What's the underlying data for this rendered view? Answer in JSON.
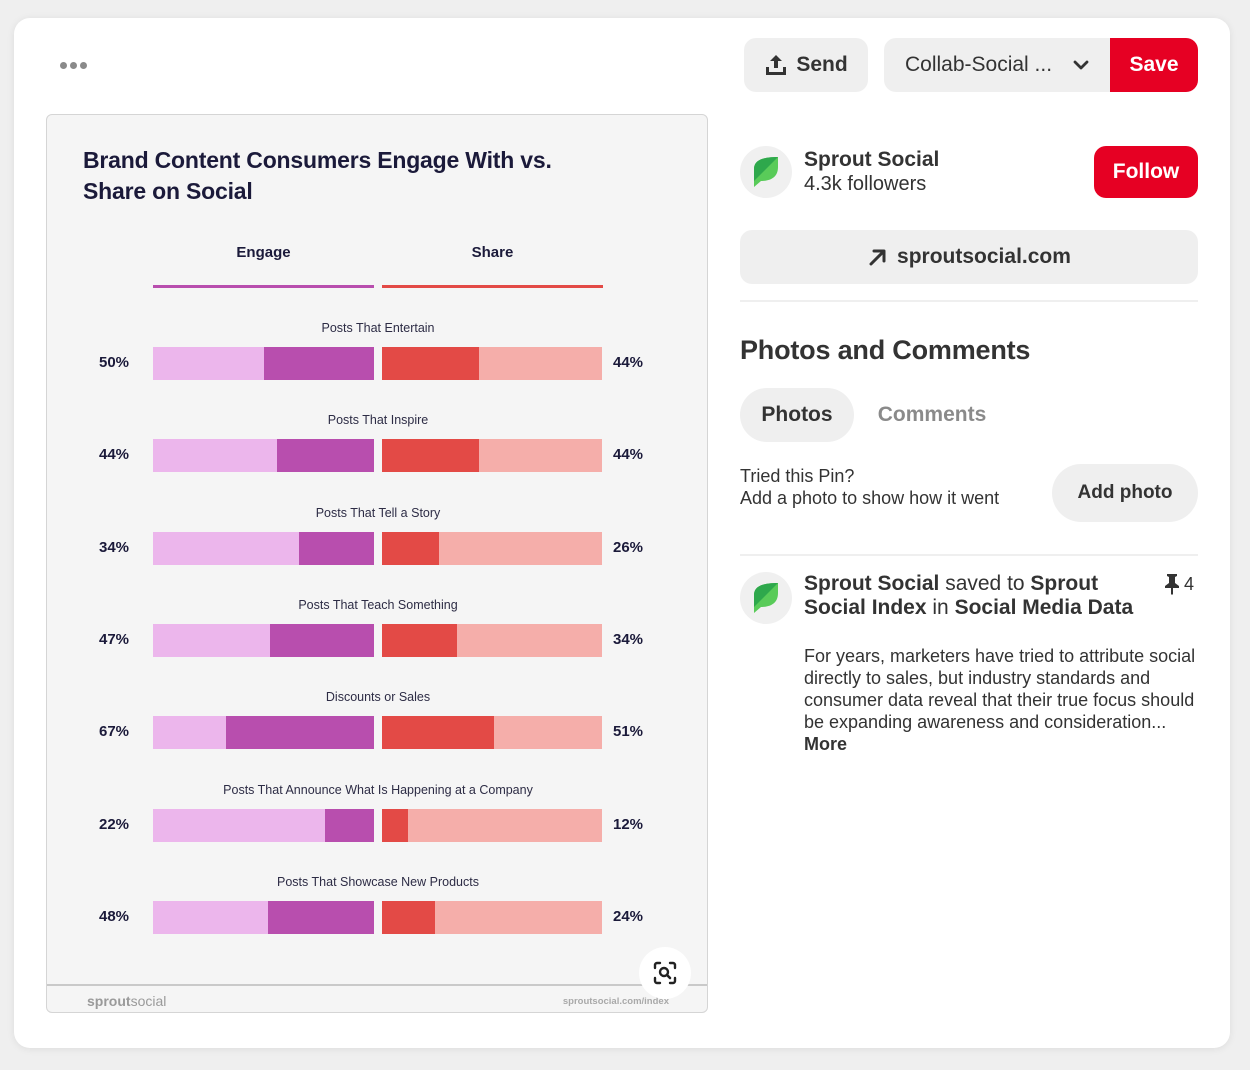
{
  "toolbar": {
    "more_icon": "ellipsis-icon",
    "send_label": "Send",
    "send_icon": "share-upload-icon",
    "board_select_value": "Collab-Social ...",
    "board_select_icon": "chevron-down-icon",
    "save_label": "Save"
  },
  "pin": {
    "lens_icon": "visual-search-icon",
    "infographic": {
      "title": "Brand Content Consumers Engage With vs. Share on Social",
      "legend": {
        "engage": "Engage",
        "share": "Share"
      },
      "colors": {
        "engage_dark": "#b84eae",
        "engage_light": "#ecb6ec",
        "share_dark": "#e34a46",
        "share_light": "#f5aeaa"
      },
      "footer_brand_bold": "sprout",
      "footer_brand_light": "social",
      "footer_url": "sproutsocial.com/index"
    }
  },
  "chart_data": {
    "type": "bar",
    "title": "Brand Content Consumers Engage With vs. Share on Social",
    "xlabel": "",
    "ylabel": "",
    "ylim": [
      0,
      100
    ],
    "legend": "top-center",
    "categories": [
      "Posts That Entertain",
      "Posts That Inspire",
      "Posts That Tell a Story",
      "Posts That Teach Something",
      "Discounts or Sales",
      "Posts That Announce What Is Happening at a Company",
      "Posts That Showcase New Products"
    ],
    "series": [
      {
        "name": "Engage",
        "values": [
          50,
          44,
          34,
          47,
          67,
          22,
          48
        ]
      },
      {
        "name": "Share",
        "values": [
          44,
          44,
          26,
          34,
          51,
          12,
          24
        ]
      }
    ]
  },
  "profile": {
    "name": "Sprout Social",
    "followers": "4.3k followers",
    "follow_label": "Follow",
    "avatar_icon": "sprout-leaf-logo-icon",
    "website_label": "sproutsocial.com",
    "website_icon": "arrow-up-right-icon"
  },
  "photos_comments": {
    "title": "Photos and Comments",
    "tabs": [
      {
        "label": "Photos",
        "active": true
      },
      {
        "label": "Comments",
        "active": false
      }
    ],
    "tried_line1": "Tried this Pin?",
    "tried_line2": "Add a photo to show how it went",
    "add_photo_label": "Add photo"
  },
  "activity": {
    "user": "Sprout Social",
    "saved_to_text": " saved to ",
    "board": "Sprout Social Index",
    "in_text": " in ",
    "section": "Social Media Data",
    "pin_icon": "pushpin-icon",
    "pin_count": "4",
    "description": "For years, marketers have tried to attribute social directly to sales, but industry standards and consumer data reveal that their true focus should be expanding awareness and consideration...",
    "more_label": "More"
  }
}
